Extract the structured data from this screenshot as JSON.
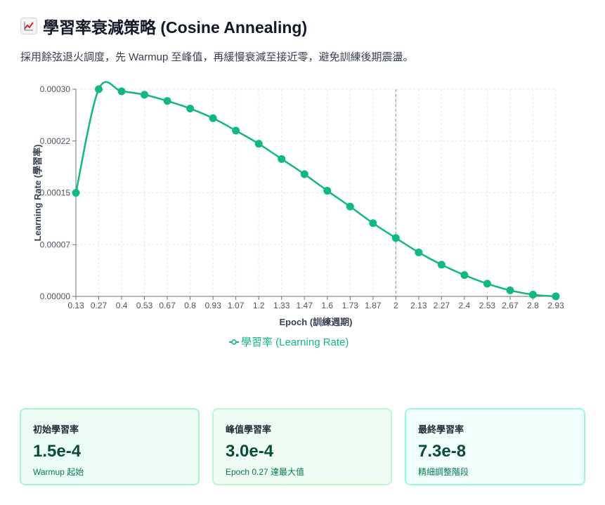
{
  "header": {
    "title": "學習率衰減策略 (Cosine Annealing)",
    "title_icon": "chart-increasing-icon",
    "subtitle": "採用餘弦退火調度，先 Warmup 至峰值，再緩慢衰減至接近零，避免訓練後期震盪。"
  },
  "chart_data": {
    "type": "line",
    "x": [
      0.13,
      0.27,
      0.4,
      0.53,
      0.67,
      0.8,
      0.93,
      1.07,
      1.2,
      1.33,
      1.47,
      1.6,
      1.73,
      1.87,
      2,
      2.13,
      2.27,
      2.4,
      2.53,
      2.67,
      2.8,
      2.93
    ],
    "x_tick_labels": [
      "0.13",
      "0.27",
      "0.4",
      "0.53",
      "0.67",
      "0.8",
      "0.93",
      "1.07",
      "1.2",
      "1.33",
      "1.47",
      "1.6",
      "1.73",
      "1.87",
      "2",
      "2.13",
      "2.27",
      "2.4",
      "2.53",
      "2.67",
      "2.8",
      "2.93"
    ],
    "series": [
      {
        "name": "學習率 (Learning Rate)",
        "color": "#10b981",
        "values": [
          0.00015,
          0.0003,
          0.000297,
          0.000292,
          0.000283,
          0.000272,
          0.000258,
          0.00024,
          0.000221,
          0.000199,
          0.000177,
          0.000153,
          0.00013,
          0.000106,
          8.45e-05,
          6.37e-05,
          4.59e-05,
          3.09e-05,
          1.84e-05,
          8.8e-06,
          2.5e-06,
          7e-08
        ]
      }
    ],
    "y_tick_labels": [
      "0.00000",
      "0.00007",
      "0.00015",
      "0.00022",
      "0.00030"
    ],
    "ylim": [
      0,
      0.0003
    ],
    "xlabel": "Epoch (訓練週期)",
    "ylabel": "Learning Rate (學習率)",
    "reference_line_x": 2,
    "reference_line_color": "#9ca3af",
    "grid": true,
    "legend_position": "bottom-center"
  },
  "cards": [
    {
      "label": "初始學習率",
      "value": "1.5e-4",
      "note": "Warmup 起始"
    },
    {
      "label": "峰值學習率",
      "value": "3.0e-4",
      "note": "Epoch 0.27 達最大值"
    },
    {
      "label": "最終學習率",
      "value": "7.3e-8",
      "note": "精細調整階段"
    }
  ]
}
